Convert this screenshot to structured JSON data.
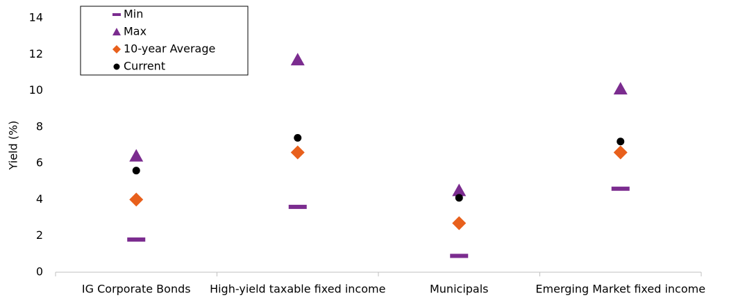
{
  "chart_data": {
    "type": "dot",
    "y_label": "Yield (%)",
    "categories": [
      "IG Corporate Bonds",
      "High-yield taxable fixed income",
      "Municipals",
      "Emerging Market fixed income"
    ],
    "series": [
      {
        "name": "Min",
        "color": "#7b2c8f",
        "marker": "dash",
        "values": [
          1.8,
          3.6,
          0.9,
          4.6
        ]
      },
      {
        "name": "Max",
        "color": "#7b2c8f",
        "marker": "triangle",
        "values": [
          6.4,
          11.7,
          4.5,
          10.1
        ]
      },
      {
        "name": "10-year Average",
        "color": "#e8601c",
        "marker": "diamond",
        "values": [
          4.0,
          6.6,
          2.7,
          6.6
        ]
      },
      {
        "name": "Current",
        "color": "#000000",
        "marker": "circle",
        "values": [
          5.6,
          7.4,
          4.1,
          7.2
        ]
      }
    ],
    "ylim": [
      0,
      14
    ],
    "yticks": [
      0,
      2,
      4,
      6,
      8,
      10,
      12,
      14
    ],
    "legend": "top-left"
  }
}
